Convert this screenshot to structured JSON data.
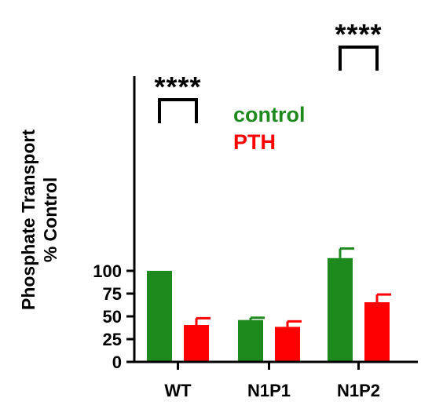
{
  "chart_data": {
    "type": "bar",
    "categories": [
      "WT",
      "N1P1",
      "N1P2"
    ],
    "series": [
      {
        "name": "control",
        "color": "#1e8a1e",
        "values": [
          100,
          46,
          114
        ],
        "errors": [
          0,
          2.5,
          10.5
        ]
      },
      {
        "name": "PTH",
        "color": "#ff0000",
        "values": [
          40.5,
          38.5,
          65.5
        ],
        "errors": [
          7.5,
          6,
          8.5
        ]
      }
    ],
    "ylabel_line1": "Phosphate Transport",
    "ylabel_line2": "% Control",
    "ylim": [
      0,
      125
    ],
    "yticks": [
      "0",
      "25",
      "50",
      "75",
      "100"
    ],
    "legend_position": "top-center",
    "grid": false,
    "significance": [
      {
        "category": "WT",
        "label": "****"
      },
      {
        "category": "N1P2",
        "label": "****"
      }
    ]
  }
}
